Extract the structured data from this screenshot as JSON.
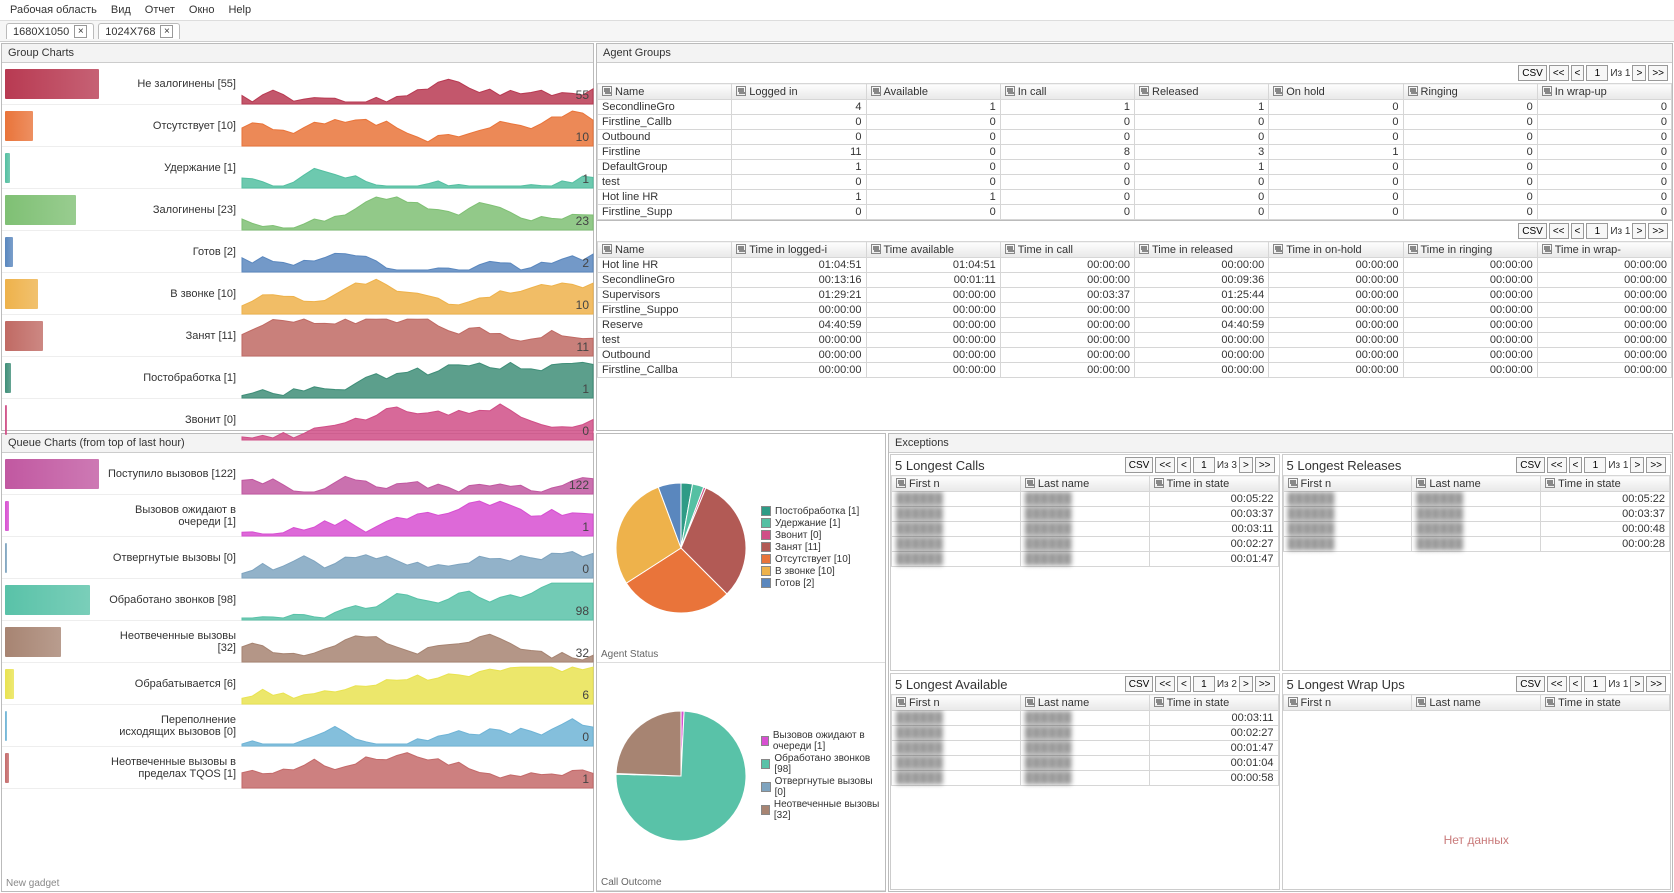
{
  "menu": {
    "items": [
      "Рабочая область",
      "Вид",
      "Отчет",
      "Окно",
      "Help"
    ]
  },
  "tabs": [
    {
      "label": "1680X1050"
    },
    {
      "label": "1024X768"
    }
  ],
  "panels": {
    "groupCharts": "Group Charts",
    "queueCharts": "Queue Charts (from top of last hour)",
    "agentGroups": "Agent Groups",
    "exceptions": "Exceptions"
  },
  "groupCharts": {
    "rows": [
      {
        "label": "Не залогинены [55]",
        "val": "55",
        "color": "#b83a52",
        "barW": 100
      },
      {
        "label": "Отсутствует [10]",
        "val": "10",
        "color": "#e9743a",
        "barW": 30
      },
      {
        "label": "Удержание [1]",
        "val": "1",
        "color": "#54bfa1",
        "barW": 5
      },
      {
        "label": "Залогинены [23]",
        "val": "23",
        "color": "#7fc074",
        "barW": 75
      },
      {
        "label": "Готов [2]",
        "val": "2",
        "color": "#5a87be",
        "barW": 8
      },
      {
        "label": "В звонке [10]",
        "val": "10",
        "color": "#eeb24b",
        "barW": 35
      },
      {
        "label": "Занят [11]",
        "val": "11",
        "color": "#c06a64",
        "barW": 40
      },
      {
        "label": "Постобработка [1]",
        "val": "1",
        "color": "#3f8e78",
        "barW": 6
      },
      {
        "label": "Звонит [0]",
        "val": "0",
        "color": "#d04f87",
        "barW": 2
      }
    ]
  },
  "queueCharts": {
    "rows": [
      {
        "label": "Поступило вызовов [122]",
        "val": "122",
        "color": "#c158a1",
        "barW": 100
      },
      {
        "label": "Вызовов ожидают в очереди [1]",
        "val": "1",
        "color": "#d74fd1",
        "barW": 4
      },
      {
        "label": "Отвергнутые вызовы [0]",
        "val": "0",
        "color": "#7fa4bf",
        "barW": 2
      },
      {
        "label": "Обработано звонков [98]",
        "val": "98",
        "color": "#59c2a8",
        "barW": 90
      },
      {
        "label": "Неотвеченные вызовы [32]",
        "val": "32",
        "color": "#a78472",
        "barW": 60
      },
      {
        "label": "Обрабатывается [6]",
        "val": "6",
        "color": "#e9e351",
        "barW": 10
      },
      {
        "label": "Переполнение исходящих вызовов [0]",
        "val": "0",
        "color": "#6fb4d6",
        "barW": 2
      },
      {
        "label": "Неотвеченные вызовы в пределах TQOS [1]",
        "val": "1",
        "color": "#c46a6a",
        "barW": 4
      }
    ],
    "newGadget": "New gadget"
  },
  "agentGroupsTable1": {
    "cols": [
      "Name",
      "Logged in",
      "Available",
      "In call",
      "Released",
      "On hold",
      "Ringing",
      "In wrap-up"
    ],
    "rows": [
      [
        "SecondlineGro",
        "4",
        "1",
        "1",
        "1",
        "0",
        "0",
        "0"
      ],
      [
        "Firstline_Callb",
        "0",
        "0",
        "0",
        "0",
        "0",
        "0",
        "0"
      ],
      [
        "Outbound",
        "0",
        "0",
        "0",
        "0",
        "0",
        "0",
        "0"
      ],
      [
        "Firstline",
        "11",
        "0",
        "8",
        "3",
        "1",
        "0",
        "0"
      ],
      [
        "DefaultGroup",
        "1",
        "0",
        "0",
        "1",
        "0",
        "0",
        "0"
      ],
      [
        "test",
        "0",
        "0",
        "0",
        "0",
        "0",
        "0",
        "0"
      ],
      [
        "Hot line HR",
        "1",
        "1",
        "0",
        "0",
        "0",
        "0",
        "0"
      ],
      [
        "Firstline_Supp",
        "0",
        "0",
        "0",
        "0",
        "0",
        "0",
        "0"
      ]
    ],
    "pager": {
      "csv": "CSV",
      "page": "1",
      "of": "Из 1"
    }
  },
  "agentGroupsTable2": {
    "cols": [
      "Name",
      "Time in logged-i",
      "Time available",
      "Time in call",
      "Time in released",
      "Time in on-hold",
      "Time in ringing",
      "Time in wrap-"
    ],
    "rows": [
      [
        "Hot line HR",
        "01:04:51",
        "01:04:51",
        "00:00:00",
        "00:00:00",
        "00:00:00",
        "00:00:00",
        "00:00:00"
      ],
      [
        "SecondlineGro",
        "00:13:16",
        "00:01:11",
        "00:00:00",
        "00:09:36",
        "00:00:00",
        "00:00:00",
        "00:00:00"
      ],
      [
        "Supervisors",
        "01:29:21",
        "00:00:00",
        "00:03:37",
        "01:25:44",
        "00:00:00",
        "00:00:00",
        "00:00:00"
      ],
      [
        "Firstline_Suppo",
        "00:00:00",
        "00:00:00",
        "00:00:00",
        "00:00:00",
        "00:00:00",
        "00:00:00",
        "00:00:00"
      ],
      [
        "Reserve",
        "04:40:59",
        "00:00:00",
        "00:00:00",
        "04:40:59",
        "00:00:00",
        "00:00:00",
        "00:00:00"
      ],
      [
        "test",
        "00:00:00",
        "00:00:00",
        "00:00:00",
        "00:00:00",
        "00:00:00",
        "00:00:00",
        "00:00:00"
      ],
      [
        "Outbound",
        "00:00:00",
        "00:00:00",
        "00:00:00",
        "00:00:00",
        "00:00:00",
        "00:00:00",
        "00:00:00"
      ],
      [
        "Firstline_Callba",
        "00:00:00",
        "00:00:00",
        "00:00:00",
        "00:00:00",
        "00:00:00",
        "00:00:00",
        "00:00:00"
      ]
    ],
    "pager": {
      "csv": "CSV",
      "page": "1",
      "of": "Из 1"
    }
  },
  "pie1": {
    "title": "Agent Status",
    "slices": [
      {
        "label": "Постобработка [1]",
        "v": 1,
        "c": "#2e9b86"
      },
      {
        "label": "Удержание [1]",
        "v": 1,
        "c": "#55c0a3"
      },
      {
        "label": "Звонит [0]",
        "v": 0.2,
        "c": "#d04f87"
      },
      {
        "label": "Занят [11]",
        "v": 11,
        "c": "#b25a55"
      },
      {
        "label": "Отсутствует [10]",
        "v": 10,
        "c": "#e9743a"
      },
      {
        "label": "В звонке [10]",
        "v": 10,
        "c": "#eeb24b"
      },
      {
        "label": "Готов [2]",
        "v": 2,
        "c": "#5a87be"
      }
    ]
  },
  "pie2": {
    "title": "Call Outcome",
    "slices": [
      {
        "label": "Вызовов ожидают в очереди [1]",
        "v": 1,
        "c": "#d74fd1"
      },
      {
        "label": "Обработано звонков [98]",
        "v": 98,
        "c": "#59c2a8"
      },
      {
        "label": "Отвергнутые вызовы [0]",
        "v": 0.2,
        "c": "#7fa4bf"
      },
      {
        "label": "Неотвеченные вызовы [32]",
        "v": 32,
        "c": "#a78472"
      }
    ]
  },
  "exceptions": {
    "boxes": [
      {
        "title": "5 Longest Calls",
        "pager": {
          "csv": "CSV",
          "page": "1",
          "of": "Из 3"
        },
        "cols": [
          "First n",
          "Last name",
          "Time in state"
        ],
        "rows": [
          [
            "",
            "",
            "00:05:22"
          ],
          [
            "",
            "",
            "00:03:37"
          ],
          [
            "",
            "",
            "00:03:11"
          ],
          [
            "",
            "",
            "00:02:27"
          ],
          [
            "",
            "",
            "00:01:47"
          ]
        ]
      },
      {
        "title": "5 Longest Releases",
        "pager": {
          "csv": "CSV",
          "page": "1",
          "of": "Из 1"
        },
        "cols": [
          "First n",
          "Last name",
          "Time in state"
        ],
        "rows": [
          [
            "",
            "",
            "00:05:22"
          ],
          [
            "",
            "",
            "00:03:37"
          ],
          [
            "",
            "",
            "00:00:48"
          ],
          [
            "",
            "",
            "00:00:28"
          ]
        ]
      },
      {
        "title": "5 Longest Available",
        "pager": {
          "csv": "CSV",
          "page": "1",
          "of": "Из 2"
        },
        "cols": [
          "First n",
          "Last name",
          "Time in state"
        ],
        "rows": [
          [
            "",
            "",
            "00:03:11"
          ],
          [
            "",
            "",
            "00:02:27"
          ],
          [
            "",
            "",
            "00:01:47"
          ],
          [
            "",
            "",
            "00:01:04"
          ],
          [
            "",
            "",
            "00:00:58"
          ]
        ]
      },
      {
        "title": "5 Longest Wrap Ups",
        "pager": {
          "csv": "CSV",
          "page": "1",
          "of": "Из 1"
        },
        "cols": [
          "First n",
          "Last name",
          "Time in state"
        ],
        "nodata": "Нет данных"
      }
    ]
  }
}
